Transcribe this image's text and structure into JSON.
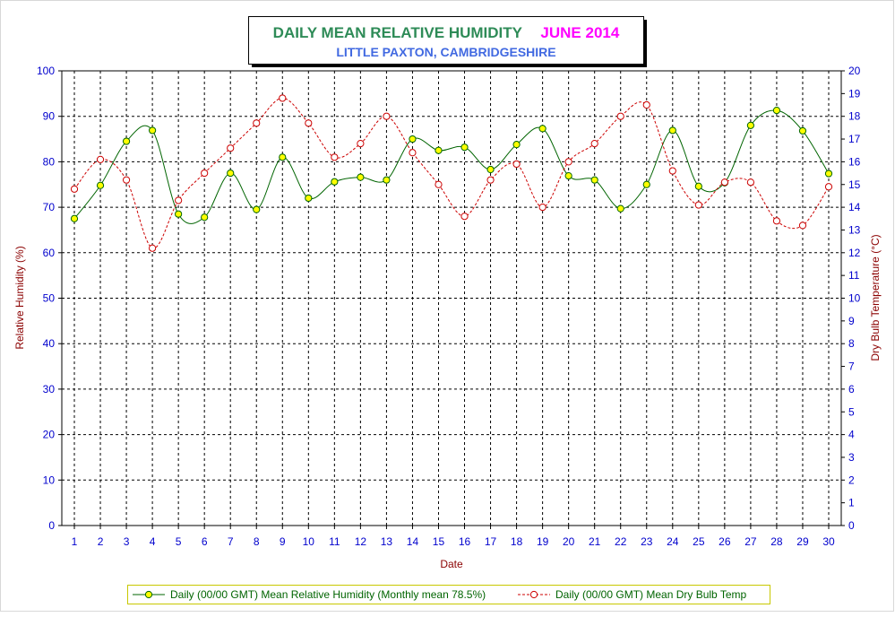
{
  "chart_data": {
    "type": "line",
    "title": "DAILY MEAN RELATIVE HUMIDITY",
    "title_period": "JUNE 2014",
    "subtitle": "LITTLE PAXTON, CAMBRIDGESHIRE",
    "xlabel": "Date",
    "ylabel_left": "Relative Humidity (%)",
    "ylabel_right": "Dry Bulb Temperature (°C)",
    "x": [
      1,
      2,
      3,
      4,
      5,
      6,
      7,
      8,
      9,
      10,
      11,
      12,
      13,
      14,
      15,
      16,
      17,
      18,
      19,
      20,
      21,
      22,
      23,
      24,
      25,
      26,
      27,
      28,
      29,
      30
    ],
    "ylim_left": [
      0,
      100
    ],
    "yticks_left": [
      0,
      10,
      20,
      30,
      40,
      50,
      60,
      70,
      80,
      90,
      100
    ],
    "ylim_right": [
      0,
      20
    ],
    "yticks_right": [
      0,
      1,
      2,
      3,
      4,
      5,
      6,
      7,
      8,
      9,
      10,
      11,
      12,
      13,
      14,
      15,
      16,
      17,
      18,
      19,
      20
    ],
    "grid": true,
    "legend_position": "bottom",
    "series": [
      {
        "name": "Daily (00/00 GMT) Mean Relative Humidity (Monthly mean 78.5%)",
        "axis": "left",
        "color": "#006400",
        "marker_fill": "#ffff00",
        "line_style": "solid",
        "values": [
          67.5,
          74.8,
          84.5,
          86.9,
          68.5,
          67.8,
          77.5,
          69.5,
          81.0,
          72.0,
          75.6,
          76.6,
          76.0,
          85.0,
          82.5,
          83.2,
          78.3,
          83.8,
          87.3,
          76.9,
          76.0,
          69.7,
          75.0,
          86.9,
          74.6,
          75.4,
          88.0,
          91.3,
          86.8,
          77.4
        ]
      },
      {
        "name": "Daily (00/00 GMT) Mean Dry Bulb Temp",
        "axis": "right",
        "color": "#cc0000",
        "marker_fill": "#ffffff",
        "line_style": "dashed",
        "values": [
          14.8,
          16.1,
          15.2,
          12.2,
          14.3,
          15.5,
          16.6,
          17.7,
          18.8,
          17.7,
          16.2,
          16.8,
          18.0,
          16.4,
          15.0,
          13.6,
          15.2,
          15.9,
          14.0,
          16.0,
          16.8,
          18.0,
          18.5,
          15.6,
          14.1,
          15.1,
          15.1,
          13.4,
          13.2,
          14.9
        ]
      }
    ]
  },
  "colors": {
    "title_main": "#2e8b57",
    "title_period": "#ff00ff",
    "subtitle": "#4169e1",
    "tick_labels": "#0000cd",
    "axis_titles": "#8b0000",
    "grid": "#000000"
  }
}
